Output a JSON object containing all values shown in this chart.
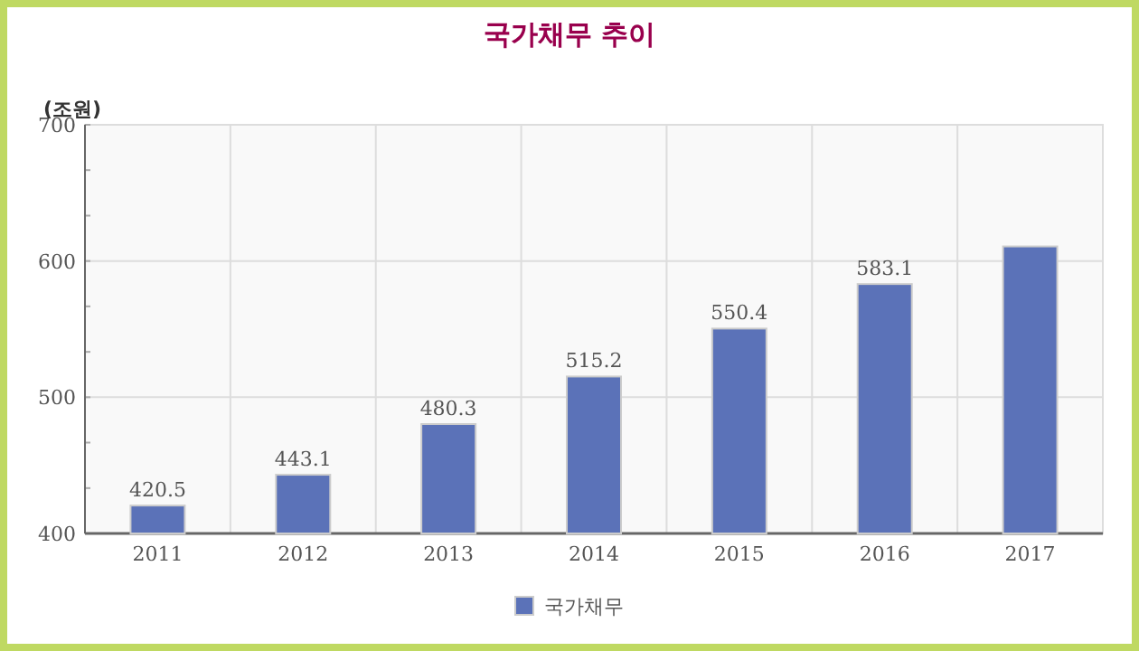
{
  "chart_data": {
    "type": "bar",
    "title": "국가채무 추이",
    "ylabel": "(조원)",
    "categories": [
      "2011",
      "2012",
      "2013",
      "2014",
      "2015",
      "2016",
      "2017"
    ],
    "series": [
      {
        "name": "국가채무",
        "color": "#5b72b8",
        "values": [
          420.5,
          443.1,
          480.3,
          515.2,
          550.4,
          583.1,
          610.7
        ],
        "value_labels": [
          "420.5",
          "443.1",
          "480.3",
          "515.2",
          "550.4",
          "583.1",
          null
        ]
      }
    ],
    "ylim": [
      400,
      700
    ],
    "yticks": [
      400,
      {
        "value": 433.3,
        "label": null
      },
      {
        "value": 466.7,
        "label": null
      },
      500,
      {
        "value": 533.3,
        "label": null
      },
      {
        "value": 566.7,
        "label": null
      },
      600,
      {
        "value": 633.3,
        "label": null
      },
      {
        "value": 666.7,
        "label": null
      },
      700
    ],
    "grid": true,
    "legend": "bottom"
  }
}
